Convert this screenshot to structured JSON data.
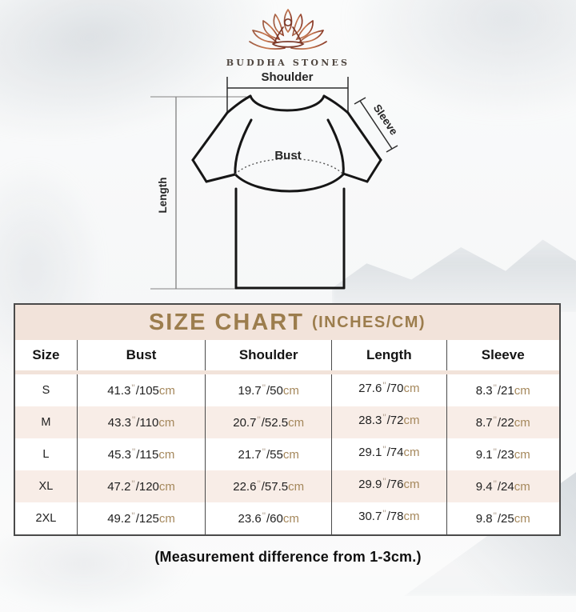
{
  "brand": {
    "name": "BUDDHA STONES"
  },
  "diagram": {
    "labels": {
      "shoulder": "Shoulder",
      "sleeve": "Sleeve",
      "bust": "Bust",
      "length": "Length"
    }
  },
  "size_chart": {
    "title": "SIZE CHART",
    "title_suffix": "(INCHES/CM)",
    "columns": [
      "Size",
      "Bust",
      "Shoulder",
      "Length",
      "Sleeve"
    ],
    "units": {
      "inch_mark": "\"",
      "separator": "/",
      "cm_suffix": "cm"
    },
    "rows": [
      {
        "size": "S",
        "bust": {
          "in": "41.3",
          "cm": "105"
        },
        "shoulder": {
          "in": "19.7",
          "cm": "50"
        },
        "length": {
          "in": "27.6",
          "cm": "70"
        },
        "sleeve": {
          "in": "8.3",
          "cm": "21"
        }
      },
      {
        "size": "M",
        "bust": {
          "in": "43.3",
          "cm": "110"
        },
        "shoulder": {
          "in": "20.7",
          "cm": "52.5"
        },
        "length": {
          "in": "28.3",
          "cm": "72"
        },
        "sleeve": {
          "in": "8.7",
          "cm": "22"
        }
      },
      {
        "size": "L",
        "bust": {
          "in": "45.3",
          "cm": "115"
        },
        "shoulder": {
          "in": "21.7",
          "cm": "55"
        },
        "length": {
          "in": "29.1",
          "cm": "74"
        },
        "sleeve": {
          "in": "9.1",
          "cm": "23"
        }
      },
      {
        "size": "XL",
        "bust": {
          "in": "47.2",
          "cm": "120"
        },
        "shoulder": {
          "in": "22.6",
          "cm": "57.5"
        },
        "length": {
          "in": "29.9",
          "cm": "76"
        },
        "sleeve": {
          "in": "9.4",
          "cm": "24"
        }
      },
      {
        "size": "2XL",
        "bust": {
          "in": "49.2",
          "cm": "125"
        },
        "shoulder": {
          "in": "23.6",
          "cm": "60"
        },
        "length": {
          "in": "30.7",
          "cm": "78"
        },
        "sleeve": {
          "in": "9.8",
          "cm": "25"
        }
      }
    ]
  },
  "footer_note": "(Measurement difference from 1-3cm.)",
  "colors": {
    "title_gold": "#9C7D4D",
    "header_band_pink": "#F2E3DA",
    "row_alt_pink": "#F8EDE7",
    "cm_tan": "#A5885C",
    "inch_mark_gray": "#B2A292",
    "table_border": "#4A4A4A",
    "logo_gradient_left": "#9C5A42",
    "logo_gradient_right": "#8A3A28"
  }
}
